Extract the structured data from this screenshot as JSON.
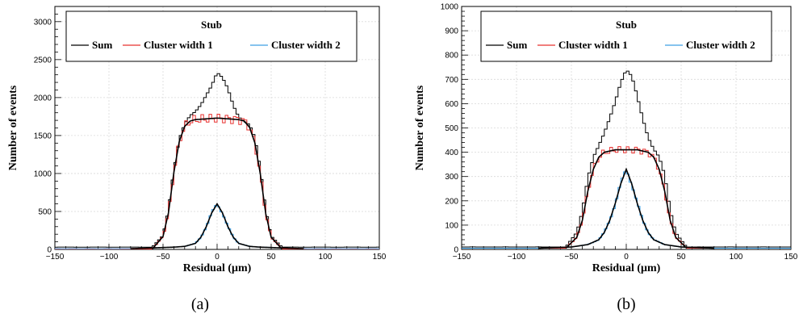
{
  "chart_data": [
    {
      "type": "line",
      "caption": "(a)",
      "title": "",
      "xlabel": "Residual (μm)",
      "ylabel": "Number of events",
      "xlim": [
        -150,
        150
      ],
      "ylim": [
        0,
        3200
      ],
      "xticks": [
        "−150",
        "−100",
        "−50",
        "0",
        "50",
        "100",
        "150"
      ],
      "yticks": [
        "0",
        "500",
        "1000",
        "1500",
        "2000",
        "2500",
        "3000"
      ],
      "grid": true,
      "legend": {
        "title": "Stub",
        "placement": "top",
        "entries": [
          "Sum",
          "Cluster width 1",
          "Cluster width 2"
        ]
      },
      "series": [
        {
          "name": "Sum",
          "color": "#000000",
          "x": [
            -60,
            -50,
            -45,
            -40,
            -35,
            -30,
            -25,
            -20,
            -15,
            -10,
            -5,
            0,
            5,
            10,
            15,
            20,
            25,
            30,
            35,
            40,
            45,
            50,
            60
          ],
          "values": [
            30,
            180,
            520,
            1060,
            1480,
            1660,
            1730,
            1780,
            1900,
            2070,
            2200,
            2330,
            2220,
            2080,
            1900,
            1780,
            1720,
            1640,
            1440,
            1040,
            520,
            180,
            30
          ]
        },
        {
          "name": "Cluster width 1",
          "color": "#e8302f",
          "x": [
            -60,
            -50,
            -45,
            -40,
            -35,
            -30,
            -25,
            -20,
            -10,
            0,
            10,
            20,
            25,
            30,
            35,
            40,
            45,
            50,
            60
          ],
          "values": [
            5,
            170,
            480,
            1010,
            1420,
            1620,
            1690,
            1710,
            1720,
            1730,
            1720,
            1710,
            1690,
            1610,
            1400,
            990,
            470,
            160,
            5
          ]
        },
        {
          "name": "Cluster width 2",
          "color": "#3ea0e4",
          "x": [
            -80,
            -60,
            -40,
            -30,
            -20,
            -15,
            -10,
            -5,
            0,
            5,
            10,
            15,
            20,
            30,
            40,
            60,
            80
          ],
          "values": [
            10,
            20,
            30,
            40,
            80,
            160,
            300,
            480,
            600,
            480,
            300,
            160,
            80,
            40,
            30,
            20,
            10
          ]
        }
      ]
    },
    {
      "type": "line",
      "caption": "(b)",
      "title": "",
      "xlabel": "Residual (μm)",
      "ylabel": "Number of events",
      "xlim": [
        -150,
        150
      ],
      "ylim": [
        0,
        1000
      ],
      "xticks": [
        "−150",
        "−100",
        "−50",
        "0",
        "50",
        "100",
        "150"
      ],
      "yticks": [
        "0",
        "100",
        "200",
        "300",
        "400",
        "500",
        "600",
        "700",
        "800",
        "900",
        "1000"
      ],
      "grid": true,
      "legend": {
        "title": "Stub",
        "placement": "top",
        "entries": [
          "Sum",
          "Cluster width 1",
          "Cluster width 2"
        ]
      },
      "series": [
        {
          "name": "Sum",
          "color": "#000000",
          "x": [
            -55,
            -45,
            -40,
            -35,
            -30,
            -25,
            -20,
            -15,
            -10,
            -5,
            0,
            5,
            10,
            15,
            20,
            25,
            30,
            35,
            40,
            45,
            55
          ],
          "values": [
            10,
            70,
            160,
            300,
            380,
            420,
            470,
            540,
            620,
            700,
            740,
            700,
            620,
            540,
            470,
            420,
            380,
            300,
            160,
            70,
            10
          ]
        },
        {
          "name": "Cluster width 1",
          "color": "#e8302f",
          "x": [
            -55,
            -45,
            -40,
            -35,
            -30,
            -25,
            -20,
            -10,
            0,
            10,
            20,
            25,
            30,
            35,
            40,
            45,
            55
          ],
          "values": [
            5,
            50,
            120,
            240,
            330,
            380,
            400,
            410,
            410,
            410,
            400,
            380,
            330,
            240,
            120,
            50,
            5
          ]
        },
        {
          "name": "Cluster width 2",
          "color": "#3ea0e4",
          "x": [
            -80,
            -50,
            -35,
            -25,
            -20,
            -15,
            -10,
            -5,
            0,
            5,
            10,
            15,
            20,
            25,
            35,
            50,
            80
          ],
          "values": [
            5,
            10,
            20,
            40,
            70,
            120,
            190,
            270,
            330,
            270,
            190,
            120,
            70,
            40,
            20,
            10,
            5
          ]
        }
      ]
    }
  ]
}
